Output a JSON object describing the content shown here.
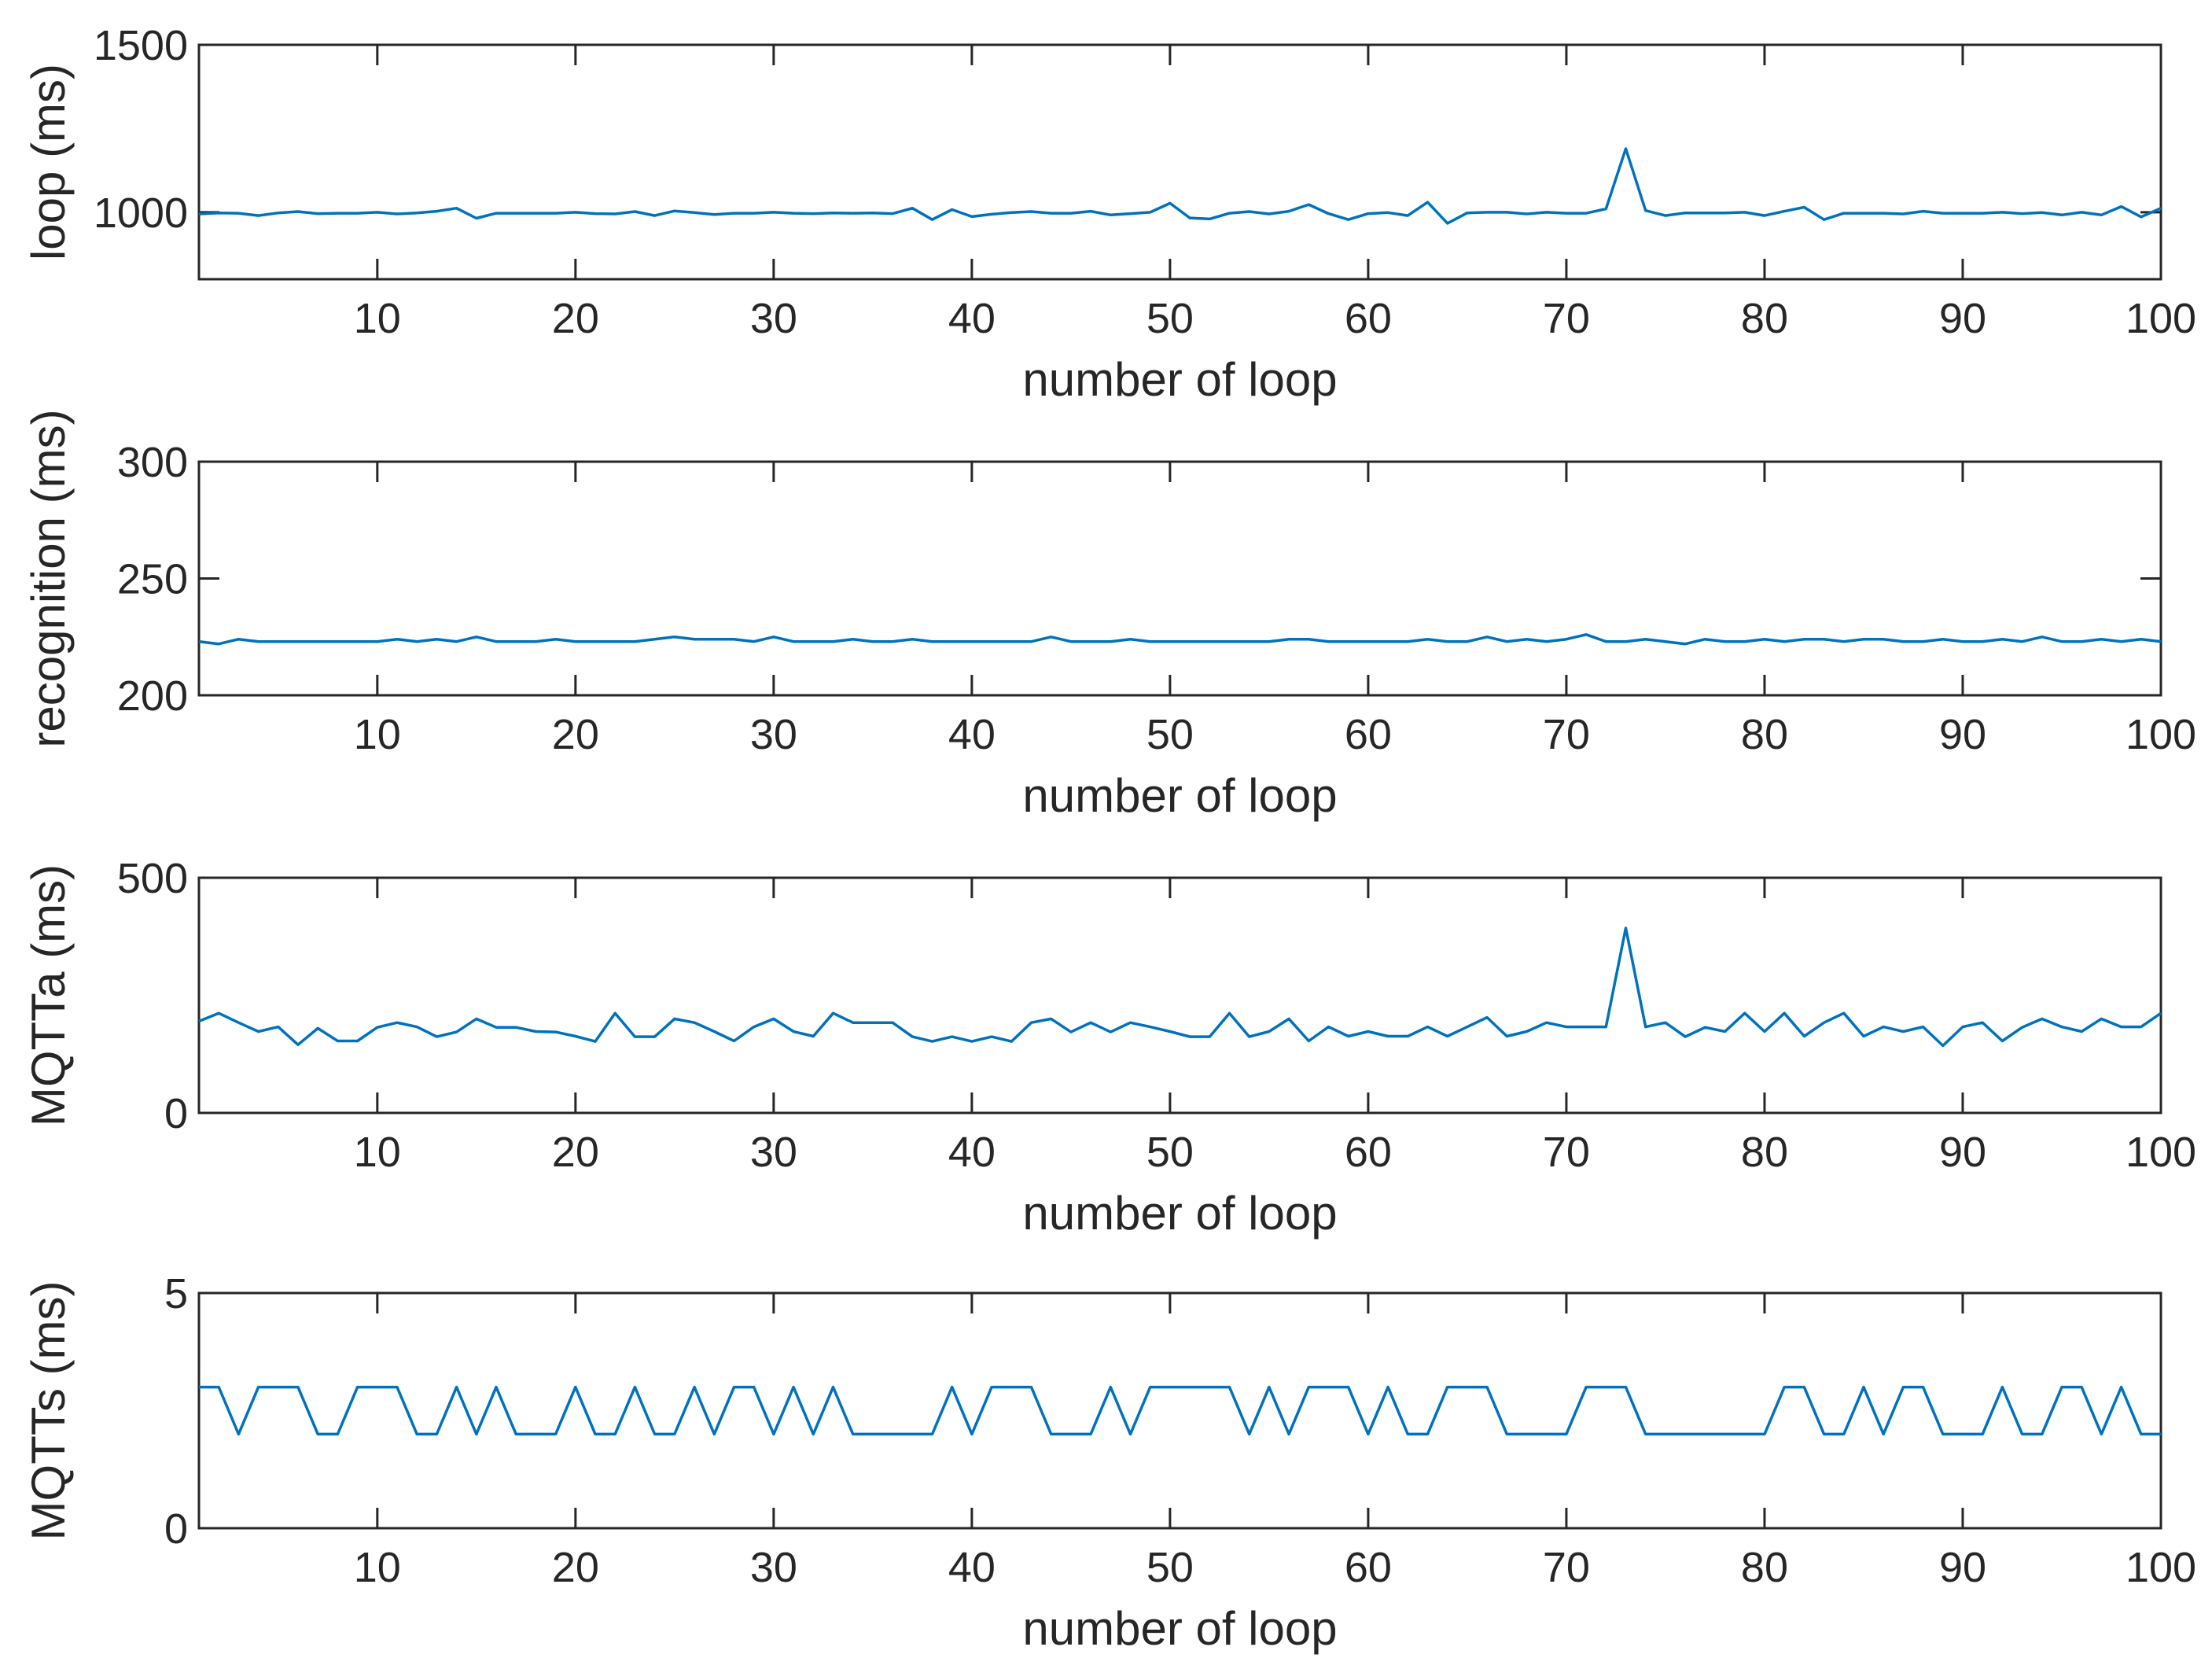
{
  "colors": {
    "series": "#0072BD",
    "axes": "#262626",
    "background": "#ffffff"
  },
  "chart_data": [
    {
      "type": "line",
      "xlabel": "number of loop",
      "ylabel": "loop (ms)",
      "xlim": [
        1,
        100
      ],
      "ylim": [
        800,
        1500
      ],
      "xticks": [
        10,
        20,
        30,
        40,
        50,
        60,
        70,
        80,
        90,
        100
      ],
      "xtick_labels": [
        "10",
        "20",
        "30",
        "40",
        "50",
        "60",
        "70",
        "80",
        "90",
        "100"
      ],
      "yticks": [
        1000,
        1500
      ],
      "ytick_labels": [
        "1000",
        "1500"
      ],
      "grid": false,
      "x": [
        1,
        2,
        3,
        4,
        5,
        6,
        7,
        8,
        9,
        10,
        11,
        12,
        13,
        14,
        15,
        16,
        17,
        18,
        19,
        20,
        21,
        22,
        23,
        24,
        25,
        26,
        27,
        28,
        29,
        30,
        31,
        32,
        33,
        34,
        35,
        36,
        37,
        38,
        39,
        40,
        41,
        42,
        43,
        44,
        45,
        46,
        47,
        48,
        49,
        50,
        51,
        52,
        53,
        54,
        55,
        56,
        57,
        58,
        59,
        60,
        61,
        62,
        63,
        64,
        65,
        66,
        67,
        68,
        69,
        70,
        71,
        72,
        73,
        74,
        75,
        76,
        77,
        78,
        79,
        80,
        81,
        82,
        83,
        84,
        85,
        86,
        87,
        88,
        89,
        90,
        91,
        92,
        93,
        94,
        95,
        96,
        97,
        98,
        99,
        100
      ],
      "series": [
        {
          "values": [
            995,
            998,
            997,
            990,
            998,
            1002,
            996,
            997,
            997,
            1000,
            995,
            998,
            1003,
            1012,
            982,
            997,
            997,
            997,
            997,
            1000,
            996,
            995,
            1002,
            990,
            1004,
            999,
            993,
            997,
            997,
            1000,
            997,
            996,
            998,
            997,
            998,
            996,
            1012,
            978,
            1008,
            987,
            994,
            999,
            1002,
            997,
            997,
            1003,
            992,
            996,
            1000,
            1027,
            983,
            980,
            997,
            1002,
            995,
            1003,
            1023,
            996,
            978,
            996,
            999,
            990,
            1030,
            967,
            998,
            1000,
            1000,
            995,
            1000,
            997,
            997,
            1010,
            1190,
            1005,
            990,
            998,
            998,
            998,
            1000,
            990,
            1003,
            1015,
            978,
            997,
            997,
            997,
            995,
            1003,
            997,
            997,
            997,
            1000,
            996,
            999,
            992,
            1000,
            992,
            1017,
            986,
            1012
          ]
        }
      ]
    },
    {
      "type": "line",
      "xlabel": "number of loop",
      "ylabel": "recognition (ms)",
      "xlim": [
        1,
        100
      ],
      "ylim": [
        200,
        300
      ],
      "xticks": [
        10,
        20,
        30,
        40,
        50,
        60,
        70,
        80,
        90,
        100
      ],
      "xtick_labels": [
        "10",
        "20",
        "30",
        "40",
        "50",
        "60",
        "70",
        "80",
        "90",
        "100"
      ],
      "yticks": [
        200,
        250,
        300
      ],
      "ytick_labels": [
        "200",
        "250",
        "300"
      ],
      "grid": false,
      "x": [
        1,
        2,
        3,
        4,
        5,
        6,
        7,
        8,
        9,
        10,
        11,
        12,
        13,
        14,
        15,
        16,
        17,
        18,
        19,
        20,
        21,
        22,
        23,
        24,
        25,
        26,
        27,
        28,
        29,
        30,
        31,
        32,
        33,
        34,
        35,
        36,
        37,
        38,
        39,
        40,
        41,
        42,
        43,
        44,
        45,
        46,
        47,
        48,
        49,
        50,
        51,
        52,
        53,
        54,
        55,
        56,
        57,
        58,
        59,
        60,
        61,
        62,
        63,
        64,
        65,
        66,
        67,
        68,
        69,
        70,
        71,
        72,
        73,
        74,
        75,
        76,
        77,
        78,
        79,
        80,
        81,
        82,
        83,
        84,
        85,
        86,
        87,
        88,
        89,
        90,
        91,
        92,
        93,
        94,
        95,
        96,
        97,
        98,
        99,
        100
      ],
      "series": [
        {
          "values": [
            223,
            222,
            224,
            223,
            223,
            223,
            223,
            223,
            223,
            223,
            224,
            223,
            224,
            223,
            225,
            223,
            223,
            223,
            224,
            223,
            223,
            223,
            223,
            224,
            225,
            224,
            224,
            224,
            223,
            225,
            223,
            223,
            223,
            224,
            223,
            223,
            224,
            223,
            223,
            223,
            223,
            223,
            223,
            225,
            223,
            223,
            223,
            224,
            223,
            223,
            223,
            223,
            223,
            223,
            223,
            224,
            224,
            223,
            223,
            223,
            223,
            223,
            224,
            223,
            223,
            225,
            223,
            224,
            223,
            224,
            226,
            223,
            223,
            224,
            223,
            222,
            224,
            223,
            223,
            224,
            223,
            224,
            224,
            223,
            224,
            224,
            223,
            223,
            224,
            223,
            223,
            224,
            223,
            225,
            223,
            223,
            224,
            223,
            224,
            223
          ]
        }
      ]
    },
    {
      "type": "line",
      "xlabel": "number of loop",
      "ylabel": "MQTTa (ms)",
      "xlim": [
        1,
        100
      ],
      "ylim": [
        0,
        500
      ],
      "xticks": [
        10,
        20,
        30,
        40,
        50,
        60,
        70,
        80,
        90,
        100
      ],
      "xtick_labels": [
        "10",
        "20",
        "30",
        "40",
        "50",
        "60",
        "70",
        "80",
        "90",
        "100"
      ],
      "yticks": [
        0,
        500
      ],
      "ytick_labels": [
        "0",
        "500"
      ],
      "grid": false,
      "x": [
        1,
        2,
        3,
        4,
        5,
        6,
        7,
        8,
        9,
        10,
        11,
        12,
        13,
        14,
        15,
        16,
        17,
        18,
        19,
        20,
        21,
        22,
        23,
        24,
        25,
        26,
        27,
        28,
        29,
        30,
        31,
        32,
        33,
        34,
        35,
        36,
        37,
        38,
        39,
        40,
        41,
        42,
        43,
        44,
        45,
        46,
        47,
        48,
        49,
        50,
        51,
        52,
        53,
        54,
        55,
        56,
        57,
        58,
        59,
        60,
        61,
        62,
        63,
        64,
        65,
        66,
        67,
        68,
        69,
        70,
        71,
        72,
        73,
        74,
        75,
        76,
        77,
        78,
        79,
        80,
        81,
        82,
        83,
        84,
        85,
        86,
        87,
        88,
        89,
        90,
        91,
        92,
        93,
        94,
        95,
        96,
        97,
        98,
        99,
        100
      ],
      "series": [
        {
          "values": [
            195,
            212,
            192,
            173,
            183,
            145,
            180,
            153,
            153,
            182,
            192,
            183,
            162,
            172,
            200,
            182,
            182,
            173,
            172,
            163,
            152,
            212,
            162,
            162,
            200,
            192,
            173,
            153,
            183,
            200,
            173,
            163,
            212,
            192,
            192,
            192,
            162,
            152,
            162,
            152,
            162,
            152,
            192,
            200,
            172,
            192,
            172,
            192,
            183,
            173,
            162,
            162,
            212,
            162,
            173,
            200,
            153,
            183,
            163,
            173,
            163,
            163,
            183,
            163,
            183,
            203,
            163,
            173,
            192,
            183,
            183,
            183,
            393,
            183,
            192,
            162,
            182,
            173,
            212,
            173,
            212,
            163,
            192,
            212,
            163,
            183,
            173,
            183,
            143,
            183,
            192,
            153,
            182,
            200,
            183,
            173,
            200,
            183,
            183,
            212
          ]
        }
      ]
    },
    {
      "type": "line",
      "xlabel": "number of loop",
      "ylabel": "MQTTs (ms)",
      "xlim": [
        1,
        100
      ],
      "ylim": [
        0,
        5
      ],
      "xticks": [
        10,
        20,
        30,
        40,
        50,
        60,
        70,
        80,
        90,
        100
      ],
      "xtick_labels": [
        "10",
        "20",
        "30",
        "40",
        "50",
        "60",
        "70",
        "80",
        "90",
        "100"
      ],
      "yticks": [
        0,
        5
      ],
      "ytick_labels": [
        "0",
        "5"
      ],
      "grid": false,
      "x": [
        1,
        2,
        3,
        4,
        5,
        6,
        7,
        8,
        9,
        10,
        11,
        12,
        13,
        14,
        15,
        16,
        17,
        18,
        19,
        20,
        21,
        22,
        23,
        24,
        25,
        26,
        27,
        28,
        29,
        30,
        31,
        32,
        33,
        34,
        35,
        36,
        37,
        38,
        39,
        40,
        41,
        42,
        43,
        44,
        45,
        46,
        47,
        48,
        49,
        50,
        51,
        52,
        53,
        54,
        55,
        56,
        57,
        58,
        59,
        60,
        61,
        62,
        63,
        64,
        65,
        66,
        67,
        68,
        69,
        70,
        71,
        72,
        73,
        74,
        75,
        76,
        77,
        78,
        79,
        80,
        81,
        82,
        83,
        84,
        85,
        86,
        87,
        88,
        89,
        90,
        91,
        92,
        93,
        94,
        95,
        96,
        97,
        98,
        99,
        100
      ],
      "series": [
        {
          "values": [
            3,
            3,
            2,
            3,
            3,
            3,
            2,
            2,
            3,
            3,
            3,
            2,
            2,
            3,
            2,
            3,
            2,
            2,
            2,
            3,
            2,
            2,
            3,
            2,
            2,
            3,
            2,
            3,
            3,
            2,
            3,
            2,
            3,
            2,
            2,
            2,
            2,
            2,
            3,
            2,
            3,
            3,
            3,
            2,
            2,
            2,
            3,
            2,
            3,
            3,
            3,
            3,
            3,
            2,
            3,
            2,
            3,
            3,
            3,
            2,
            3,
            2,
            2,
            3,
            3,
            3,
            2,
            2,
            2,
            2,
            3,
            3,
            3,
            2,
            2,
            2,
            2,
            2,
            2,
            2,
            3,
            3,
            2,
            2,
            3,
            2,
            3,
            3,
            2,
            2,
            2,
            3,
            2,
            2,
            3,
            3,
            2,
            3,
            2,
            2
          ]
        }
      ]
    }
  ]
}
